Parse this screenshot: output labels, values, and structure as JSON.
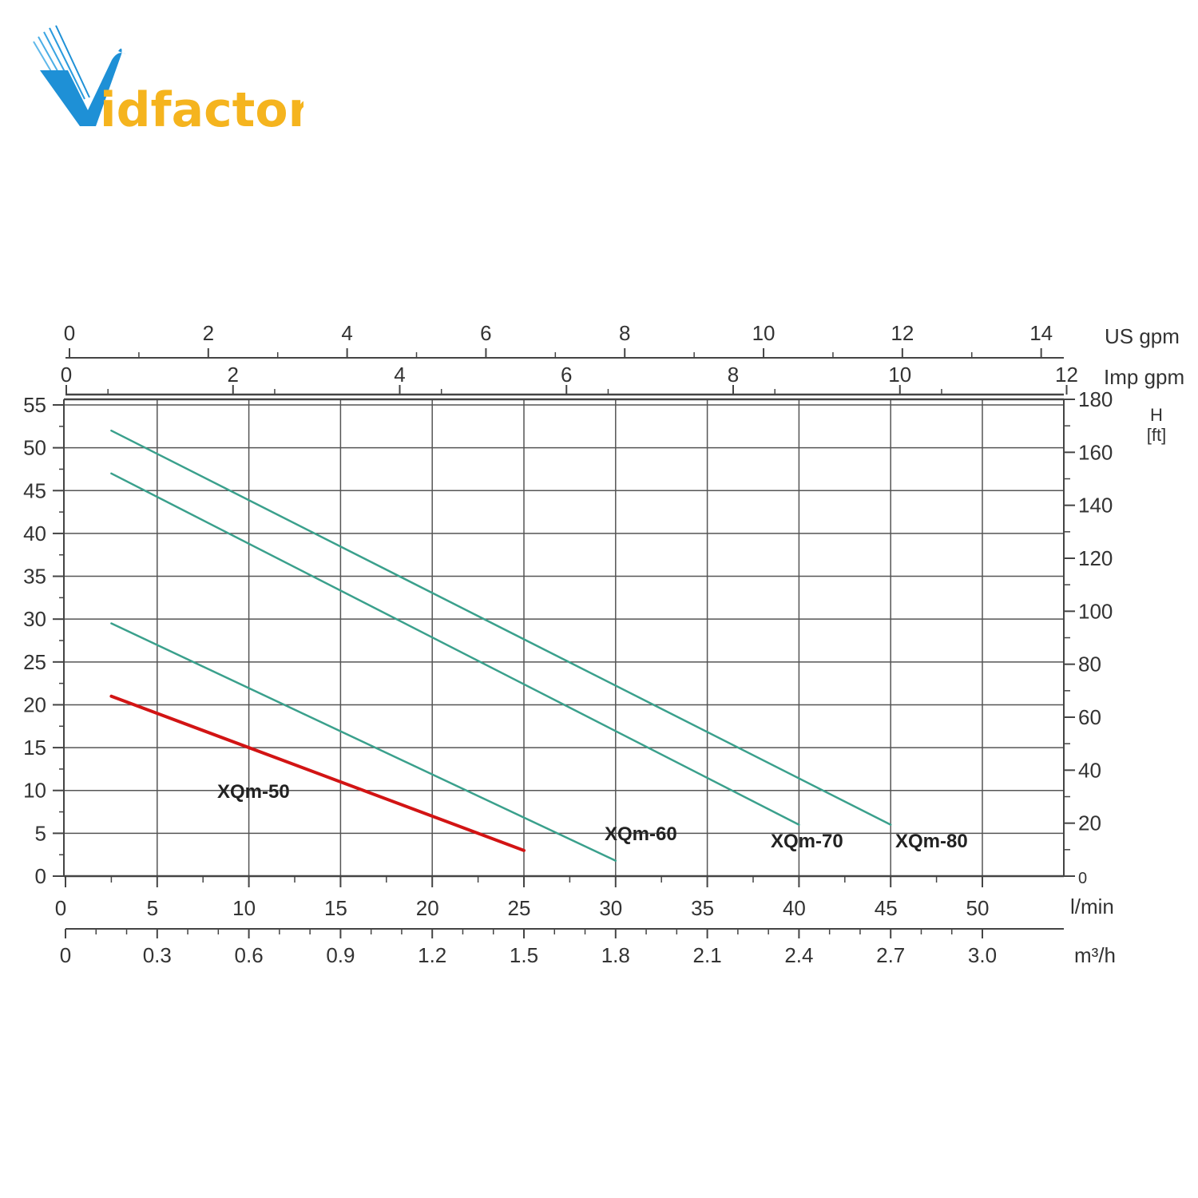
{
  "logo": {
    "text_main": "idfactor",
    "text_v": "V"
  },
  "colors": {
    "grid": "#555555",
    "frame": "#444444",
    "series_default": "#3aa08c",
    "series_highlight": "#d21414",
    "logo_blue": "#1e90d6",
    "logo_yellow": "#f5b41e"
  },
  "chart_data": {
    "type": "line",
    "x_unit": "l/min",
    "x_ticks": [
      0,
      5,
      10,
      15,
      20,
      25,
      30,
      35,
      40,
      45,
      50
    ],
    "x_max": 54.6,
    "y_left_ticks": [
      0,
      5,
      10,
      15,
      20,
      25,
      30,
      35,
      40,
      45,
      50,
      55
    ],
    "y_left_max": 55.5,
    "y_right_label": "H",
    "y_right_unit": "[ft]",
    "y_right_ticks": [
      0,
      20,
      40,
      60,
      80,
      100,
      120,
      140,
      160,
      180
    ],
    "secondary_bottom_unit": "m³/h",
    "secondary_bottom_ticks": [
      "0",
      "0.3",
      "0.6",
      "0.9",
      "1.2",
      "1.5",
      "1.8",
      "2.1",
      "2.4",
      "2.7",
      "3.0"
    ],
    "top_us_unit": "US gpm",
    "top_us_ticks": [
      0,
      2,
      4,
      6,
      8,
      10,
      12,
      14
    ],
    "top_imp_unit": "Imp gpm",
    "top_imp_ticks": [
      0,
      2,
      4,
      6,
      8,
      10,
      12
    ],
    "grid": true,
    "series": [
      {
        "name": "XQm-50",
        "x": [
          2.5,
          25
        ],
        "y": [
          21,
          3
        ],
        "highlight": true
      },
      {
        "name": "XQm-60",
        "x": [
          2.5,
          30
        ],
        "y": [
          29.5,
          1.8
        ],
        "highlight": false
      },
      {
        "name": "XQm-70",
        "x": [
          2.5,
          40
        ],
        "y": [
          47,
          6
        ],
        "highlight": false
      },
      {
        "name": "XQm-80",
        "x": [
          2.5,
          45
        ],
        "y": [
          52,
          6
        ],
        "highlight": false
      }
    ]
  }
}
